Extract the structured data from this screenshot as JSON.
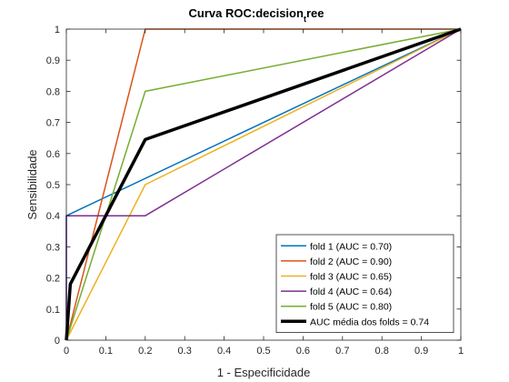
{
  "chart_data": {
    "type": "line",
    "title_main": "Curva ROC:decision",
    "title_sub": "t",
    "title_tail": "ree",
    "xlabel": "1 - Especificidade",
    "ylabel": "Sensibilidade",
    "xlim": [
      0,
      1
    ],
    "ylim": [
      0,
      1
    ],
    "xticks": [
      "0",
      "0.1",
      "0.2",
      "0.3",
      "0.4",
      "0.5",
      "0.6",
      "0.7",
      "0.8",
      "0.9",
      "1"
    ],
    "yticks": [
      "0",
      "0.1",
      "0.2",
      "0.3",
      "0.4",
      "0.5",
      "0.6",
      "0.7",
      "0.8",
      "0.9",
      "1"
    ],
    "grid": false,
    "legend_position": "bottom-right",
    "series": [
      {
        "name": "fold 1 (AUC = 0.70)",
        "color": "#0072BD",
        "width": 1.5,
        "points": [
          [
            0,
            0
          ],
          [
            0,
            0.4
          ],
          [
            1,
            1
          ]
        ]
      },
      {
        "name": "fold 2 (AUC = 0.90)",
        "color": "#D95319",
        "width": 1.5,
        "points": [
          [
            0,
            0
          ],
          [
            0.2,
            1
          ],
          [
            1,
            1
          ]
        ]
      },
      {
        "name": "fold 3 (AUC = 0.65)",
        "color": "#EDB120",
        "width": 1.5,
        "points": [
          [
            0,
            0
          ],
          [
            0.2,
            0.5
          ],
          [
            1,
            1
          ]
        ]
      },
      {
        "name": "fold 4 (AUC = 0.64)",
        "color": "#7E2F8E",
        "width": 1.5,
        "points": [
          [
            0,
            0
          ],
          [
            0,
            0.4
          ],
          [
            0.2,
            0.4
          ],
          [
            1,
            1
          ]
        ]
      },
      {
        "name": "fold 5 (AUC = 0.80)",
        "color": "#77AC30",
        "width": 1.5,
        "points": [
          [
            0,
            0
          ],
          [
            0.2,
            0.8
          ],
          [
            1,
            1
          ]
        ]
      },
      {
        "name": "AUC média dos folds = 0.74",
        "color": "#000000",
        "width": 3.5,
        "points": [
          [
            0,
            0
          ],
          [
            0.01,
            0.18
          ],
          [
            0.2,
            0.645
          ],
          [
            1,
            1
          ]
        ]
      }
    ]
  }
}
